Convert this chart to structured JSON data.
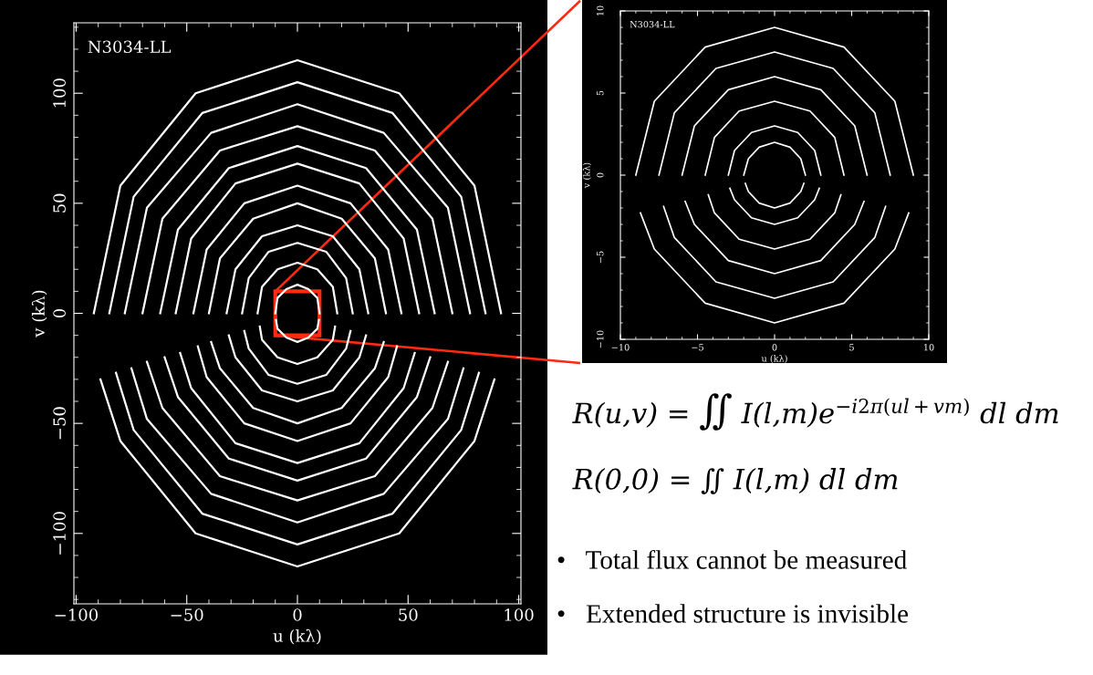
{
  "chart_data": [
    {
      "type": "line",
      "xlabel": "u (kλ)",
      "ylabel": "v (kλ)",
      "annotations": [
        "N3034-LL"
      ],
      "marker": "none",
      "line_style": "solid",
      "xlim": [
        -101,
        101
      ],
      "ylim": [
        -132,
        132
      ],
      "xticks": [
        {
          "value": -100,
          "label": "−100"
        },
        {
          "value": -50,
          "label": "−50"
        },
        0,
        50,
        100
      ],
      "yticks": [
        {
          "value": -100,
          "label": "−100"
        },
        {
          "value": -50,
          "label": "−50"
        },
        0,
        50,
        100
      ],
      "series": [
        {
          "color": "#ffffff",
          "x": [
            -92,
            -80,
            -46,
            0,
            46,
            80,
            92
          ],
          "values": [
            0,
            58,
            100,
            115,
            100,
            58,
            0
          ]
        },
        {
          "color": "#ffffff",
          "x": [
            -89,
            -80,
            -46,
            0,
            46,
            80,
            89
          ],
          "values": [
            -30,
            -58,
            -100,
            -115,
            -100,
            -58,
            -30
          ]
        },
        {
          "color": "#ffffff",
          "x": [
            -85,
            -74,
            -43,
            0,
            43,
            74,
            85
          ],
          "values": [
            0,
            53,
            91,
            105,
            91,
            53,
            0
          ]
        },
        {
          "color": "#ffffff",
          "x": [
            -82,
            -74,
            -43,
            0,
            43,
            74,
            82
          ],
          "values": [
            -27,
            -53,
            -91,
            -105,
            -91,
            -53,
            -27
          ]
        },
        {
          "color": "#ffffff",
          "x": [
            -78,
            -68,
            -39,
            0,
            39,
            68,
            78
          ],
          "values": [
            0,
            48,
            82,
            95,
            82,
            48,
            0
          ]
        },
        {
          "color": "#ffffff",
          "x": [
            -75,
            -68,
            -39,
            0,
            39,
            68,
            75
          ],
          "values": [
            -25,
            -48,
            -82,
            -95,
            -82,
            -48,
            -25
          ]
        },
        {
          "color": "#ffffff",
          "x": [
            -70,
            -61,
            -35,
            0,
            35,
            61,
            70
          ],
          "values": [
            0,
            43,
            74,
            85,
            74,
            43,
            0
          ]
        },
        {
          "color": "#ffffff",
          "x": [
            -68,
            -61,
            -35,
            0,
            35,
            61,
            68
          ],
          "values": [
            -22,
            -43,
            -74,
            -85,
            -74,
            -43,
            -22
          ]
        },
        {
          "color": "#ffffff",
          "x": [
            -62,
            -54,
            -31,
            0,
            31,
            54,
            62
          ],
          "values": [
            0,
            38,
            66,
            76,
            66,
            38,
            0
          ]
        },
        {
          "color": "#ffffff",
          "x": [
            -60,
            -54,
            -31,
            0,
            31,
            54,
            60
          ],
          "values": [
            -20,
            -38,
            -66,
            -76,
            -66,
            -38,
            -20
          ]
        },
        {
          "color": "#ffffff",
          "x": [
            -55,
            -48,
            -28,
            0,
            28,
            48,
            55
          ],
          "values": [
            0,
            34,
            59,
            68,
            59,
            34,
            0
          ]
        },
        {
          "color": "#ffffff",
          "x": [
            -53,
            -48,
            -28,
            0,
            28,
            48,
            53
          ],
          "values": [
            -18,
            -34,
            -59,
            -68,
            -59,
            -34,
            -18
          ]
        },
        {
          "color": "#ffffff",
          "x": [
            -47,
            -41,
            -24,
            0,
            24,
            41,
            47
          ],
          "values": [
            0,
            29,
            50,
            58,
            50,
            29,
            0
          ]
        },
        {
          "color": "#ffffff",
          "x": [
            -45,
            -41,
            -24,
            0,
            24,
            41,
            45
          ],
          "values": [
            -15,
            -29,
            -50,
            -58,
            -50,
            -29,
            -15
          ]
        },
        {
          "color": "#ffffff",
          "x": [
            -40,
            -35,
            -20,
            0,
            20,
            35,
            40
          ],
          "values": [
            0,
            25,
            43,
            50,
            43,
            25,
            0
          ]
        },
        {
          "color": "#ffffff",
          "x": [
            -39,
            -35,
            -20,
            0,
            20,
            35,
            39
          ],
          "values": [
            -13,
            -25,
            -43,
            -50,
            -43,
            -25,
            -13
          ]
        },
        {
          "color": "#ffffff",
          "x": [
            -32,
            -28,
            -16,
            0,
            16,
            28,
            32
          ],
          "values": [
            0,
            20,
            35,
            40,
            35,
            20,
            0
          ]
        },
        {
          "color": "#ffffff",
          "x": [
            -31,
            -28,
            -16,
            0,
            16,
            28,
            31
          ],
          "values": [
            -10,
            -20,
            -35,
            -40,
            -35,
            -20,
            -10
          ]
        },
        {
          "color": "#ffffff",
          "x": [
            -25,
            -22,
            -13,
            0,
            13,
            22,
            25
          ],
          "values": [
            0,
            16,
            28,
            32,
            28,
            16,
            0
          ]
        },
        {
          "color": "#ffffff",
          "x": [
            -24,
            -22,
            -13,
            0,
            13,
            22,
            24
          ],
          "values": [
            -8,
            -16,
            -28,
            -32,
            -28,
            -16,
            -8
          ]
        },
        {
          "color": "#ffffff",
          "x": [
            -18,
            -16,
            -9,
            0,
            9,
            16,
            18
          ],
          "values": [
            0,
            12,
            20,
            23,
            20,
            12,
            0
          ]
        },
        {
          "color": "#ffffff",
          "x": [
            -17,
            -16,
            -9,
            0,
            9,
            16,
            17
          ],
          "values": [
            -6,
            -12,
            -20,
            -23,
            -20,
            -12,
            -6
          ]
        },
        {
          "color": "#ffffff",
          "x": [
            -10,
            -9,
            -5,
            0,
            5,
            9,
            10
          ],
          "values": [
            0,
            7,
            11,
            13,
            11,
            7,
            0
          ]
        },
        {
          "color": "#ffffff",
          "x": [
            -9.7,
            -9,
            -5,
            0,
            5,
            9,
            9.7
          ],
          "values": [
            -3,
            -7,
            -11,
            -13,
            -11,
            -7,
            -3
          ]
        }
      ]
    },
    {
      "type": "line",
      "xlabel": "u (kλ)",
      "ylabel": "v (kλ)",
      "annotations": [
        "N3034-LL"
      ],
      "marker": "none",
      "line_style": "solid",
      "xlim": [
        -10,
        10
      ],
      "ylim": [
        -10,
        10
      ],
      "xticks": [
        {
          "value": -10,
          "label": "−10"
        },
        {
          "value": -5,
          "label": "−5"
        },
        0,
        5,
        10
      ],
      "yticks": [
        {
          "value": -10,
          "label": "−10"
        },
        {
          "value": -5,
          "label": "−5"
        },
        0,
        5,
        10
      ],
      "series": [
        {
          "color": "#ffffff",
          "x": [
            -9,
            -7.8,
            -4.5,
            0,
            4.5,
            7.8,
            9
          ],
          "values": [
            0,
            4.5,
            7.8,
            9,
            7.8,
            4.5,
            0
          ]
        },
        {
          "color": "#ffffff",
          "x": [
            -8.7,
            -7.8,
            -4.5,
            0,
            4.5,
            7.8,
            8.7
          ],
          "values": [
            -2.3,
            -4.5,
            -7.8,
            -9,
            -7.8,
            -4.5,
            -2.3
          ]
        },
        {
          "color": "#ffffff",
          "x": [
            -7.5,
            -6.5,
            -3.8,
            0,
            3.8,
            6.5,
            7.5
          ],
          "values": [
            0,
            3.8,
            6.5,
            7.5,
            6.5,
            3.8,
            0
          ]
        },
        {
          "color": "#ffffff",
          "x": [
            -7.2,
            -6.5,
            -3.8,
            0,
            3.8,
            6.5,
            7.2
          ],
          "values": [
            -1.9,
            -3.8,
            -6.5,
            -7.5,
            -6.5,
            -3.8,
            -1.9
          ]
        },
        {
          "color": "#ffffff",
          "x": [
            -6,
            -5.2,
            -3,
            0,
            3,
            5.2,
            6
          ],
          "values": [
            0,
            3,
            5.2,
            6,
            5.2,
            3,
            0
          ]
        },
        {
          "color": "#ffffff",
          "x": [
            -5.8,
            -5.2,
            -3,
            0,
            3,
            5.2,
            5.8
          ],
          "values": [
            -1.6,
            -3,
            -5.2,
            -6,
            -5.2,
            -3,
            -1.6
          ]
        },
        {
          "color": "#ffffff",
          "x": [
            -4.5,
            -3.9,
            -2.3,
            0,
            2.3,
            3.9,
            4.5
          ],
          "values": [
            0,
            2.3,
            3.9,
            4.5,
            3.9,
            2.3,
            0
          ]
        },
        {
          "color": "#ffffff",
          "x": [
            -4.3,
            -3.9,
            -2.3,
            0,
            2.3,
            3.9,
            4.3
          ],
          "values": [
            -1.2,
            -2.3,
            -3.9,
            -4.5,
            -3.9,
            -2.3,
            -1.2
          ]
        },
        {
          "color": "#ffffff",
          "x": [
            -3,
            -2.6,
            -1.5,
            0,
            1.5,
            2.6,
            3
          ],
          "values": [
            0,
            1.5,
            2.6,
            3,
            2.6,
            1.5,
            0
          ]
        },
        {
          "color": "#ffffff",
          "x": [
            -2.9,
            -2.6,
            -1.5,
            0,
            1.5,
            2.6,
            2.9
          ],
          "values": [
            -0.8,
            -1.5,
            -2.6,
            -3,
            -2.6,
            -1.5,
            -0.8
          ]
        },
        {
          "color": "#ffffff",
          "x": [
            -2,
            -1.7,
            -1,
            0,
            1,
            1.7,
            2
          ],
          "values": [
            0,
            1,
            1.7,
            2,
            1.7,
            1,
            0
          ]
        },
        {
          "color": "#ffffff",
          "x": [
            -1.9,
            -1.7,
            -1,
            0,
            1,
            1.7,
            1.9
          ],
          "values": [
            -0.5,
            -1,
            -1.7,
            -2,
            -1.7,
            -1,
            -0.5
          ]
        }
      ]
    },
    {
      "type": "other",
      "annotations": [
        "R(u,v) = ∬ I(l,m)e$^{−i2π(ul+vm)}$ dl dm",
        "R(0,0) = ∬ I(l,m) dl dm",
        "•   Total flux cannot be measured",
        "•   Extended structure is invisible"
      ]
    }
  ]
}
